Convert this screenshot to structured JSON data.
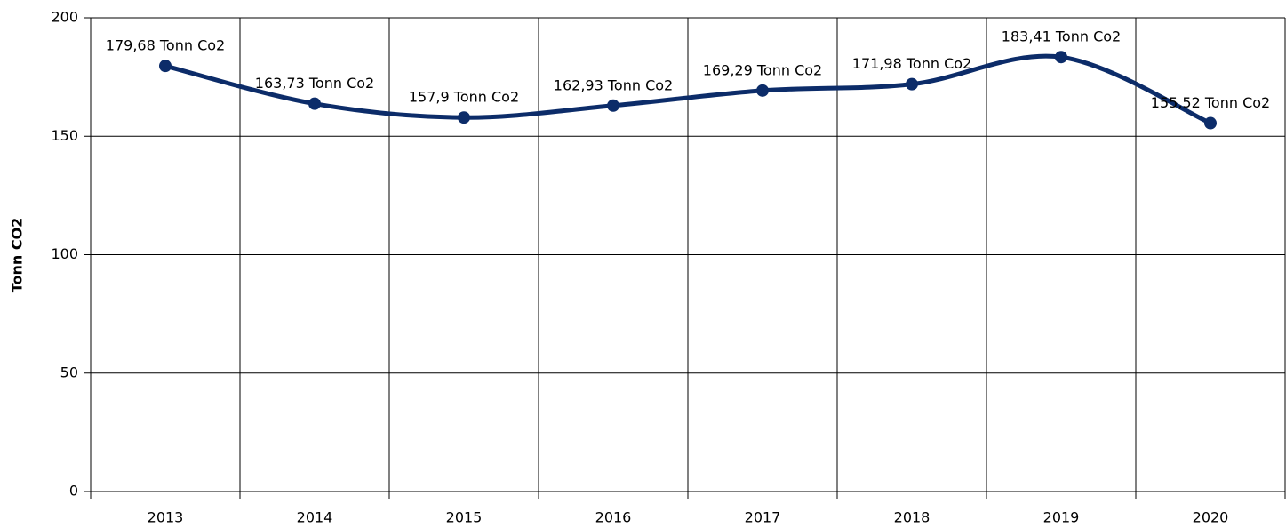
{
  "chart_data": {
    "type": "line",
    "ylabel": "Tonn CO2",
    "categories": [
      "2013",
      "2014",
      "2015",
      "2016",
      "2017",
      "2018",
      "2019",
      "2020"
    ],
    "series": [
      {
        "color": "#0c2c69",
        "values": [
          179.68,
          163.73,
          157.9,
          162.93,
          169.29,
          171.98,
          183.41,
          155.52
        ],
        "value_labels": [
          "179,68 Tonn Co2",
          "163,73 Tonn Co2",
          "157,9 Tonn Co2",
          "162,93 Tonn Co2",
          "169,29 Tonn Co2",
          "171,98 Tonn Co2",
          "183,41 Tonn Co2",
          "155,52 Tonn Co2"
        ]
      }
    ],
    "ylim": [
      0,
      200
    ],
    "yticks": [
      0,
      50,
      100,
      150,
      200
    ],
    "grid": true,
    "smooth": true
  }
}
